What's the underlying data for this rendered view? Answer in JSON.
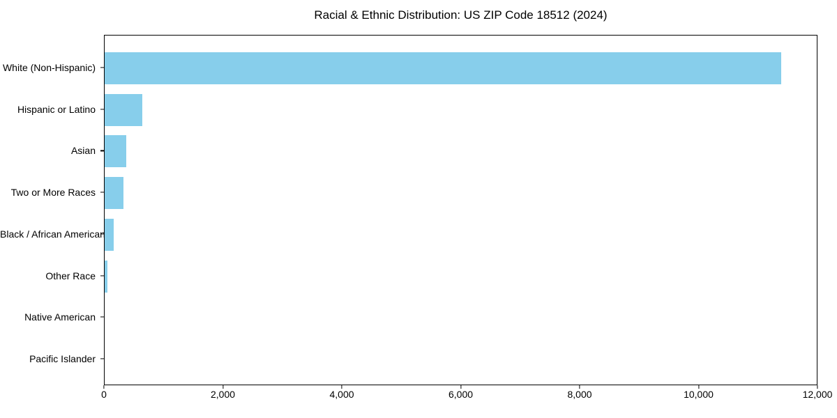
{
  "chart_data": {
    "type": "bar",
    "orientation": "horizontal",
    "title": "Racial & Ethnic Distribution: US ZIP Code 18512 (2024)",
    "categories": [
      "White (Non-Hispanic)",
      "Hispanic or Latino",
      "Asian",
      "Two or More Races",
      "Black / African American",
      "Other Race",
      "Native American",
      "Pacific Islander"
    ],
    "values": [
      11400,
      630,
      360,
      320,
      150,
      50,
      0,
      0
    ],
    "xlabel": "",
    "ylabel": "",
    "xlim": [
      0,
      12000
    ],
    "xticks": [
      0,
      2000,
      4000,
      6000,
      8000,
      10000,
      12000
    ],
    "xtick_labels": [
      "0",
      "2,000",
      "4,000",
      "6,000",
      "8,000",
      "10,000",
      "12,000"
    ],
    "bar_color": "#87CEEB",
    "background_color": "#ffffff",
    "grid": false,
    "legend_position": "none"
  }
}
